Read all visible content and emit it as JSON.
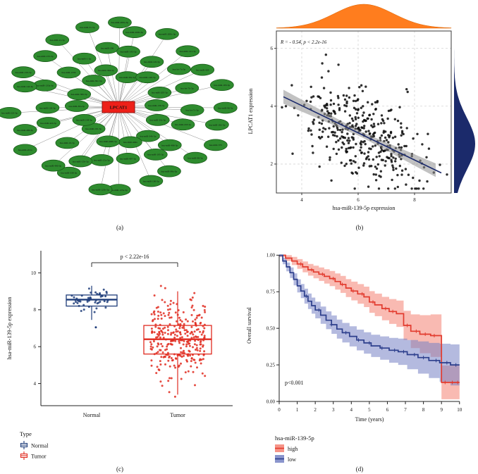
{
  "figure": {
    "background": "#ffffff",
    "panel_labels": {
      "a": "(a)",
      "b": "(b)",
      "c": "(c)",
      "d": "(d)"
    }
  },
  "chart_data": [
    {
      "id": "mirna-network",
      "type": "other",
      "description": "Hub-and-spoke network: green miRNA nodes linked to central red LPCAT1 node",
      "center_label": "LPCAT1",
      "center_color": "#ee2019",
      "node_color": "#2e8b2e",
      "node_border_color": "#145414",
      "edge_color": "#8a8a8a",
      "seed": 7,
      "nodes": [
        "hsa-miR-139-5p",
        "hsa-miR-34c-5p",
        "hsa-miR-34b-5p",
        "hsa-miR-449a",
        "hsa-miR-449b-5p",
        "hsa-miR-101-3p",
        "hsa-miR-144-3p",
        "hsa-miR-30a-5p",
        "hsa-miR-30b-5p",
        "hsa-miR-30c-5p",
        "hsa-miR-30d-5p",
        "hsa-miR-30e-5p",
        "hsa-miR-140-5p",
        "hsa-miR-205-5p",
        "hsa-miR-218-5p",
        "hsa-miR-486-5p",
        "hsa-miR-195-5p",
        "hsa-miR-497-5p",
        "hsa-miR-15a-5p",
        "hsa-miR-15b-5p",
        "hsa-miR-16-5p",
        "hsa-miR-424-5p",
        "hsa-miR-126-3p",
        "hsa-miR-133a-3p",
        "hsa-miR-133b",
        "hsa-miR-1-3p",
        "hsa-miR-206",
        "hsa-miR-143-3p",
        "hsa-miR-145-5p",
        "hsa-let-7a-5p",
        "hsa-let-7b-5p",
        "hsa-let-7c-5p",
        "hsa-miR-98-5p",
        "hsa-miR-99a-5p",
        "hsa-miR-100-5p",
        "hsa-miR-125a-5p",
        "hsa-miR-125b-5p",
        "hsa-miR-338-3p",
        "hsa-miR-490-3p",
        "hsa-miR-451a",
        "hsa-miR-486-3p",
        "hsa-miR-223-3p",
        "hsa-miR-142-3p",
        "hsa-miR-150-5p",
        "hsa-miR-155-5p",
        "hsa-miR-21-5p",
        "hsa-miR-31-5p",
        "hsa-miR-200a-3p",
        "hsa-miR-200b-3p",
        "hsa-miR-200c-3p",
        "hsa-miR-141-3p",
        "hsa-miR-429",
        "hsa-miR-183-5p",
        "hsa-miR-96-5p",
        "hsa-miR-182-5p",
        "hsa-miR-375"
      ]
    },
    {
      "id": "correlation-scatter",
      "type": "scatter",
      "annotation": "R = - 0.54, p < 2.2e-16",
      "xlabel": "hsa-miR-139-5p expression",
      "ylabel": "LPCAT1 expression",
      "xlim": [
        3.1,
        9.3
      ],
      "ylim": [
        1.0,
        6.6
      ],
      "xticks": [
        4,
        6,
        8
      ],
      "yticks": [
        2,
        4,
        6
      ],
      "n_points": 400,
      "seed": 42,
      "x_mean": 6.2,
      "x_sd": 1.05,
      "noise_sd": 0.77,
      "regression": {
        "slope": -0.47,
        "intercept": 5.9
      },
      "point_color": "#0a0a0a",
      "line_color": "#1b2a6b",
      "band_color": "#8f8f8f",
      "grid": true,
      "top_density": {
        "color": "#ff7d1e",
        "stroke": "#d96300",
        "mean": 6.2,
        "sd": 1.05
      },
      "right_density": {
        "color": "#1b2a6b",
        "mean": 2.7,
        "sd": 0.9
      }
    },
    {
      "id": "expression-boxplot",
      "type": "box",
      "ylabel": "hsa-miR-139-5p expression",
      "p_label": "p < 2.22e-16",
      "ylim": [
        2.8,
        11.2
      ],
      "yticks": [
        4,
        6,
        8,
        10
      ],
      "categories": [
        "Normal",
        "Tumor"
      ],
      "legend_title": "Type",
      "groups": [
        {
          "name": "Normal",
          "color": "#1f3d7a",
          "median": 8.55,
          "q1": 8.2,
          "q3": 8.8,
          "whisker_low": 7.45,
          "whisker_high": 9.3,
          "n_points": 48,
          "center": 8.5,
          "jitter_sd": 0.4,
          "clip": [
            7.3,
            9.35
          ],
          "extra_points": [
            7.05
          ],
          "seed": 11
        },
        {
          "name": "Tumor",
          "color": "#e02b20",
          "median": 6.4,
          "q1": 5.6,
          "q3": 7.15,
          "whisker_low": 3.4,
          "whisker_high": 9.0,
          "n_points": 300,
          "center": 6.4,
          "jitter_sd": 1.1,
          "clip": [
            2.95,
            9.55
          ],
          "extra_points": [],
          "seed": 23
        }
      ]
    },
    {
      "id": "km-survival",
      "type": "line",
      "xlabel": "Time (years)",
      "ylabel": "Overall survival",
      "p_label": "p<0.001",
      "legend_title": "hsa-miR-139-5p",
      "xlim": [
        0,
        10.4
      ],
      "ylim": [
        0,
        1.04
      ],
      "xticks": [
        0,
        1,
        2,
        3,
        4,
        5,
        6,
        7,
        8,
        9,
        10
      ],
      "yticks": [
        0,
        0.25,
        0.5,
        0.75,
        1.0
      ],
      "ytick_labels": [
        "0.00",
        "0.25",
        "0.50",
        "0.75",
        "1.00"
      ],
      "series": [
        {
          "name": "high",
          "color": "#e23b2e",
          "band_color": "#f48173",
          "steps": [
            [
              0,
              1.0,
              0.012
            ],
            [
              0.35,
              0.98,
              0.02
            ],
            [
              0.7,
              0.96,
              0.028
            ],
            [
              1.0,
              0.94,
              0.033
            ],
            [
              1.3,
              0.92,
              0.037
            ],
            [
              1.6,
              0.9,
              0.04
            ],
            [
              1.9,
              0.885,
              0.043
            ],
            [
              2.2,
              0.87,
              0.046
            ],
            [
              2.5,
              0.855,
              0.049
            ],
            [
              2.8,
              0.84,
              0.052
            ],
            [
              3.1,
              0.82,
              0.055
            ],
            [
              3.4,
              0.8,
              0.058
            ],
            [
              3.7,
              0.775,
              0.061
            ],
            [
              4.0,
              0.755,
              0.064
            ],
            [
              4.35,
              0.735,
              0.067
            ],
            [
              4.7,
              0.715,
              0.07
            ],
            [
              5.0,
              0.68,
              0.074
            ],
            [
              5.3,
              0.66,
              0.077
            ],
            [
              5.7,
              0.635,
              0.08
            ],
            [
              6.1,
              0.615,
              0.085
            ],
            [
              6.5,
              0.6,
              0.09
            ],
            [
              6.9,
              0.52,
              0.1
            ],
            [
              7.3,
              0.48,
              0.115
            ],
            [
              7.8,
              0.46,
              0.13
            ],
            [
              8.4,
              0.45,
              0.145
            ],
            [
              9.0,
              0.13,
              0.115
            ],
            [
              9.4,
              0.13,
              0.115
            ],
            [
              10.0,
              0.13,
              0.115
            ]
          ],
          "censor_times": [
            1.2,
            1.8,
            2.4,
            3.0,
            3.5,
            4.1,
            4.6,
            5.2,
            5.9,
            6.3,
            7.1,
            7.6,
            8.1,
            8.6,
            9.2,
            9.6,
            9.9
          ]
        },
        {
          "name": "low",
          "color": "#2c3e8c",
          "band_color": "#7682c4",
          "steps": [
            [
              0,
              1.0,
              0.012
            ],
            [
              0.2,
              0.96,
              0.022
            ],
            [
              0.4,
              0.92,
              0.03
            ],
            [
              0.6,
              0.88,
              0.036
            ],
            [
              0.8,
              0.835,
              0.041
            ],
            [
              1.0,
              0.79,
              0.045
            ],
            [
              1.2,
              0.755,
              0.048
            ],
            [
              1.4,
              0.72,
              0.051
            ],
            [
              1.6,
              0.685,
              0.053
            ],
            [
              1.8,
              0.655,
              0.055
            ],
            [
              2.0,
              0.625,
              0.057
            ],
            [
              2.3,
              0.59,
              0.059
            ],
            [
              2.6,
              0.555,
              0.061
            ],
            [
              2.9,
              0.525,
              0.063
            ],
            [
              3.2,
              0.495,
              0.065
            ],
            [
              3.5,
              0.47,
              0.067
            ],
            [
              3.9,
              0.445,
              0.069
            ],
            [
              4.3,
              0.42,
              0.071
            ],
            [
              4.7,
              0.4,
              0.073
            ],
            [
              5.1,
              0.38,
              0.076
            ],
            [
              5.6,
              0.365,
              0.08
            ],
            [
              6.1,
              0.35,
              0.085
            ],
            [
              6.6,
              0.34,
              0.09
            ],
            [
              7.1,
              0.32,
              0.1
            ],
            [
              7.7,
              0.3,
              0.11
            ],
            [
              8.3,
              0.28,
              0.12
            ],
            [
              8.9,
              0.265,
              0.13
            ],
            [
              9.5,
              0.25,
              0.14
            ],
            [
              10.0,
              0.25,
              0.14
            ]
          ],
          "censor_times": [
            1.5,
            2.2,
            2.9,
            3.7,
            4.4,
            5.0,
            5.7,
            6.4,
            6.9,
            7.5,
            8.0,
            8.7,
            9.3,
            9.8
          ]
        }
      ]
    }
  ]
}
